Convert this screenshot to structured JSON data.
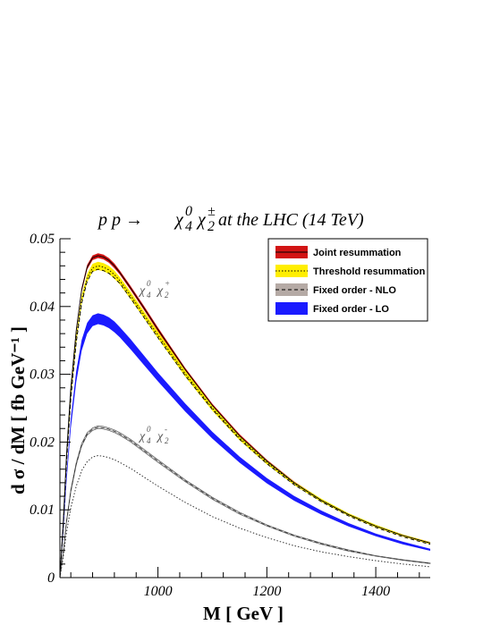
{
  "chart_data": {
    "type": "line",
    "title": {
      "prefix": "p p  →",
      "subtitle": "at the LHC (14 TeV)"
    },
    "xlabel": "M [ GeV ]",
    "ylabel": "d σ / dM [ fb GeV⁻¹ ]",
    "xlim": [
      820,
      1500
    ],
    "ylim": [
      0,
      0.05
    ],
    "x_ticks": [
      1000,
      1200,
      1400
    ],
    "y_ticks": [
      0,
      0.01,
      0.02,
      0.03,
      0.04,
      0.05
    ],
    "y_tick_labels": [
      "0",
      "0.01",
      "0.02",
      "0.03",
      "0.04",
      "0.05"
    ],
    "legend": {
      "position": "top-right",
      "entries": [
        {
          "label": "Joint resummation",
          "color": "#d21414",
          "style": "band"
        },
        {
          "label": "Threshold resummation",
          "color": "#ffee00",
          "style": "band"
        },
        {
          "label": "Fixed order - NLO",
          "color": "#b5aaa5",
          "style": "band"
        },
        {
          "label": "Fixed order - LO",
          "color": "#1a1aff",
          "style": "band"
        }
      ]
    },
    "annotations": {
      "upper": {
        "chi4": "χ",
        "sup4": "0",
        "sub4": "4",
        "chi2": "χ",
        "sup2": "+",
        "sub2": "2"
      },
      "lower": {
        "chi4": "χ",
        "sup4": "0",
        "sub4": "4",
        "chi2": "χ",
        "sup2": "-",
        "sub2": "2"
      }
    },
    "x": [
      820,
      826,
      832,
      840,
      850,
      860,
      870,
      880,
      890,
      900,
      910,
      920,
      930,
      950,
      975,
      1000,
      1050,
      1100,
      1150,
      1200,
      1250,
      1300,
      1350,
      1400,
      1450,
      1500
    ],
    "series": [
      {
        "name": "Joint resummation",
        "color": "#d21414",
        "values": [
          0.0,
          0.008,
          0.018,
          0.028,
          0.0365,
          0.0425,
          0.0458,
          0.0472,
          0.0475,
          0.0473,
          0.0468,
          0.046,
          0.045,
          0.0427,
          0.0397,
          0.0366,
          0.0307,
          0.0254,
          0.0209,
          0.0172,
          0.014,
          0.0114,
          0.0093,
          0.0076,
          0.0062,
          0.0051
        ],
        "width": [
          0,
          0.0004,
          0.0006,
          0.0007,
          0.0007,
          0.0007,
          0.0007,
          0.0007,
          0.0007,
          0.0007,
          0.0007,
          0.0007,
          0.0006,
          0.0006,
          0.0006,
          0.0006,
          0.0005,
          0.0005,
          0.0005,
          0.0004,
          0.0004,
          0.0004,
          0.0003,
          0.0003,
          0.0003,
          0.0003
        ]
      },
      {
        "name": "Threshold resummation",
        "color": "#ffee00",
        "values": [
          0.0,
          0.0076,
          0.0172,
          0.0269,
          0.0352,
          0.041,
          0.0442,
          0.0457,
          0.046,
          0.0458,
          0.0454,
          0.0447,
          0.0438,
          0.0416,
          0.0387,
          0.0358,
          0.0301,
          0.025,
          0.0206,
          0.017,
          0.0139,
          0.0114,
          0.0093,
          0.0076,
          0.0062,
          0.0051
        ],
        "width": [
          0,
          0.0006,
          0.001,
          0.0012,
          0.0012,
          0.0012,
          0.0012,
          0.0012,
          0.0012,
          0.0012,
          0.0012,
          0.0012,
          0.0011,
          0.0011,
          0.001,
          0.001,
          0.0009,
          0.0008,
          0.0007,
          0.0006,
          0.0005,
          0.0005,
          0.0004,
          0.0004,
          0.0003,
          0.0003
        ]
      },
      {
        "name": "Fixed order - NLO",
        "color": "#888888",
        "values": [
          0.0,
          0.0074,
          0.0168,
          0.0264,
          0.0347,
          0.0405,
          0.0437,
          0.0452,
          0.0455,
          0.0453,
          0.0449,
          0.0442,
          0.0434,
          0.0412,
          0.0383,
          0.0354,
          0.0298,
          0.0248,
          0.0204,
          0.0168,
          0.0137,
          0.0112,
          0.0091,
          0.0074,
          0.006,
          0.0049
        ]
      },
      {
        "name": "Fixed order - LO",
        "color": "#1a1aff",
        "values": [
          0.0,
          0.0066,
          0.0146,
          0.0228,
          0.0297,
          0.0343,
          0.0368,
          0.0379,
          0.0382,
          0.038,
          0.0376,
          0.037,
          0.0362,
          0.0344,
          0.032,
          0.0296,
          0.0251,
          0.021,
          0.0174,
          0.0143,
          0.0117,
          0.0096,
          0.0078,
          0.0063,
          0.0051,
          0.0041
        ],
        "width": [
          0,
          0.0008,
          0.0012,
          0.0015,
          0.0016,
          0.0016,
          0.0016,
          0.0016,
          0.0016,
          0.0016,
          0.0016,
          0.0016,
          0.0015,
          0.0015,
          0.0014,
          0.0013,
          0.0012,
          0.001,
          0.0009,
          0.0008,
          0.0007,
          0.0006,
          0.0005,
          0.0004,
          0.0004,
          0.0003
        ]
      },
      {
        "name": "χ04 χ-2 NLO",
        "color": "#555555",
        "values": [
          0.0,
          0.0036,
          0.0082,
          0.0128,
          0.0168,
          0.0196,
          0.0212,
          0.0219,
          0.0222,
          0.0221,
          0.0219,
          0.0216,
          0.0212,
          0.0202,
          0.0187,
          0.0172,
          0.0143,
          0.0117,
          0.0095,
          0.0077,
          0.0062,
          0.005,
          0.004,
          0.0032,
          0.0026,
          0.0021
        ],
        "width": [
          0,
          0.0002,
          0.0003,
          0.0004,
          0.0004,
          0.0004,
          0.0004,
          0.0004,
          0.0004,
          0.0004,
          0.0004,
          0.0004,
          0.0004,
          0.0004,
          0.0004,
          0.0004,
          0.0003,
          0.0003,
          0.0003,
          0.0002,
          0.0002,
          0.0002,
          0.0002,
          0.0001,
          0.0001,
          0.0001
        ]
      },
      {
        "name": "χ04 χ-2 LO",
        "color": "#555555",
        "values": [
          0.0,
          0.003,
          0.0066,
          0.0103,
          0.0135,
          0.0158,
          0.0171,
          0.0178,
          0.018,
          0.0179,
          0.0177,
          0.0174,
          0.017,
          0.0161,
          0.0148,
          0.0135,
          0.0111,
          0.009,
          0.0073,
          0.0059,
          0.0047,
          0.0038,
          0.0031,
          0.0025,
          0.002,
          0.0016
        ]
      }
    ]
  }
}
